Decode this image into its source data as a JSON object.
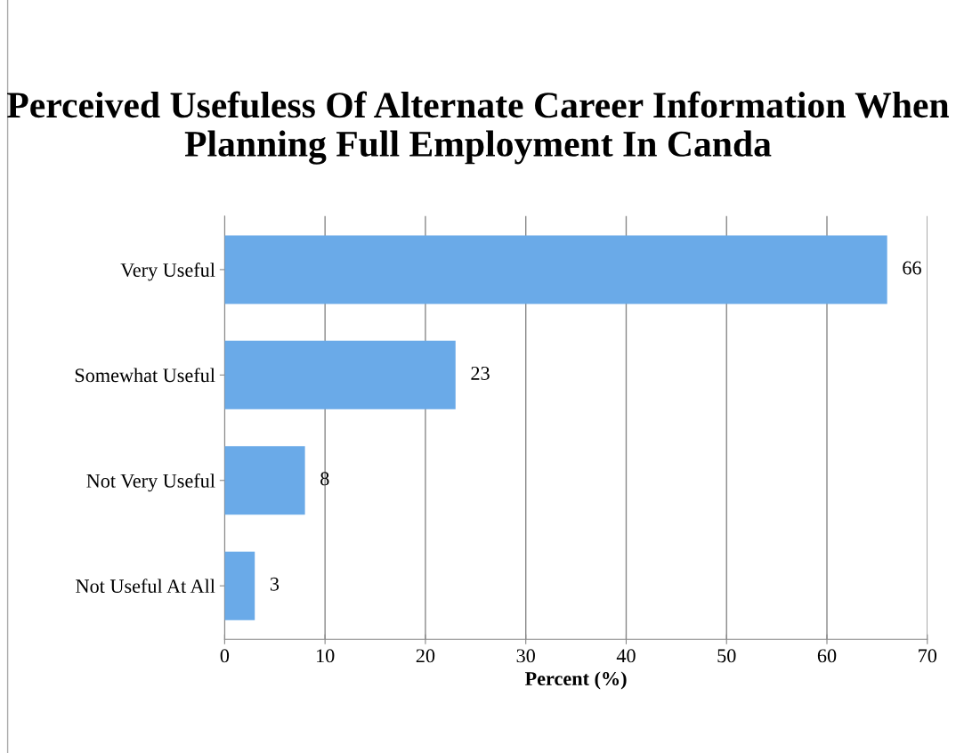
{
  "chart_data": {
    "type": "bar",
    "orientation": "horizontal",
    "title": "Perceived Usefuless Of Alternate Career Information When Planning Full Employment In Canda",
    "categories": [
      "Very Useful",
      "Somewhat Useful",
      "Not Very Useful",
      "Not Useful At All"
    ],
    "values": [
      66,
      23,
      8,
      3
    ],
    "color": "#6aaae8",
    "xlabel": "Percent (%)",
    "xlim": [
      0,
      70
    ],
    "xticks": [
      0,
      10,
      20,
      30,
      40,
      50,
      60,
      70
    ],
    "grid": "x",
    "data_labels": true
  }
}
